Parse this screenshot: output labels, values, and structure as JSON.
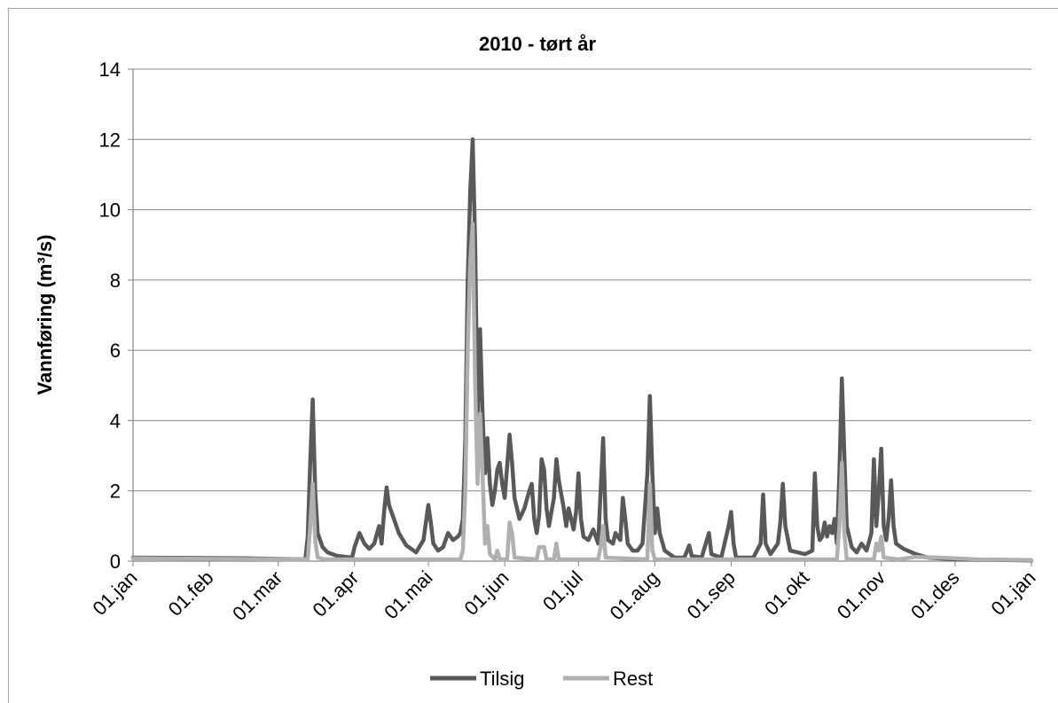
{
  "chart_data": {
    "type": "line",
    "title": "2010 - tørt år",
    "xlabel": "",
    "ylabel": "Vannføring (m³/s)",
    "ylim": [
      0,
      14
    ],
    "yticks": [
      0,
      2,
      4,
      6,
      8,
      10,
      12,
      14
    ],
    "xlim": [
      "2010-01-01",
      "2011-01-01"
    ],
    "xtick_labels": [
      "01.jan",
      "01.feb",
      "01.mar",
      "01.apr",
      "01.mai",
      "01.jun",
      "01.jul",
      "01.aug",
      "01.sep",
      "01.okt",
      "01.nov",
      "01.des",
      "01.jan"
    ],
    "grid": "horizontal",
    "legend_position": "bottom",
    "series": [
      {
        "name": "Tilsig",
        "color": "#595959",
        "points": [
          [
            "2010-01-01",
            0.1
          ],
          [
            "2010-02-15",
            0.08
          ],
          [
            "2010-03-12",
            0.05
          ],
          [
            "2010-03-13",
            0.7
          ],
          [
            "2010-03-14",
            2.8
          ],
          [
            "2010-03-15",
            4.6
          ],
          [
            "2010-03-16",
            2.0
          ],
          [
            "2010-03-17",
            0.8
          ],
          [
            "2010-03-19",
            0.4
          ],
          [
            "2010-03-21",
            0.25
          ],
          [
            "2010-03-25",
            0.15
          ],
          [
            "2010-03-31",
            0.1
          ],
          [
            "2010-04-01",
            0.4
          ],
          [
            "2010-04-03",
            0.8
          ],
          [
            "2010-04-05",
            0.5
          ],
          [
            "2010-04-07",
            0.35
          ],
          [
            "2010-04-09",
            0.5
          ],
          [
            "2010-04-11",
            1.0
          ],
          [
            "2010-04-12",
            0.5
          ],
          [
            "2010-04-13",
            1.4
          ],
          [
            "2010-04-14",
            2.1
          ],
          [
            "2010-04-15",
            1.6
          ],
          [
            "2010-04-17",
            1.2
          ],
          [
            "2010-04-19",
            0.8
          ],
          [
            "2010-04-22",
            0.45
          ],
          [
            "2010-04-26",
            0.25
          ],
          [
            "2010-04-29",
            0.6
          ],
          [
            "2010-05-01",
            1.6
          ],
          [
            "2010-05-02",
            1.1
          ],
          [
            "2010-05-03",
            0.5
          ],
          [
            "2010-05-05",
            0.3
          ],
          [
            "2010-05-07",
            0.4
          ],
          [
            "2010-05-09",
            0.8
          ],
          [
            "2010-05-11",
            0.6
          ],
          [
            "2010-05-13",
            0.7
          ],
          [
            "2010-05-14",
            0.8
          ],
          [
            "2010-05-15",
            1.2
          ],
          [
            "2010-05-16",
            3.5
          ],
          [
            "2010-05-17",
            8.0
          ],
          [
            "2010-05-18",
            10.5
          ],
          [
            "2010-05-19",
            12.0
          ],
          [
            "2010-05-20",
            9.0
          ],
          [
            "2010-05-21",
            4.0
          ],
          [
            "2010-05-22",
            6.6
          ],
          [
            "2010-05-23",
            4.2
          ],
          [
            "2010-05-24",
            2.5
          ],
          [
            "2010-05-25",
            3.5
          ],
          [
            "2010-05-26",
            2.2
          ],
          [
            "2010-05-27",
            1.6
          ],
          [
            "2010-05-28",
            2.0
          ],
          [
            "2010-05-29",
            2.6
          ],
          [
            "2010-05-30",
            2.8
          ],
          [
            "2010-05-31",
            2.2
          ],
          [
            "2010-06-01",
            1.8
          ],
          [
            "2010-06-03",
            3.6
          ],
          [
            "2010-06-04",
            2.8
          ],
          [
            "2010-06-05",
            1.8
          ],
          [
            "2010-06-07",
            1.2
          ],
          [
            "2010-06-09",
            1.5
          ],
          [
            "2010-06-11",
            2.0
          ],
          [
            "2010-06-12",
            2.2
          ],
          [
            "2010-06-13",
            1.2
          ],
          [
            "2010-06-14",
            0.8
          ],
          [
            "2010-06-15",
            1.3
          ],
          [
            "2010-06-16",
            2.9
          ],
          [
            "2010-06-17",
            2.6
          ],
          [
            "2010-06-18",
            1.5
          ],
          [
            "2010-06-19",
            1.0
          ],
          [
            "2010-06-20",
            1.4
          ],
          [
            "2010-06-21",
            1.8
          ],
          [
            "2010-06-22",
            2.9
          ],
          [
            "2010-06-23",
            2.3
          ],
          [
            "2010-06-25",
            1.5
          ],
          [
            "2010-06-26",
            1.0
          ],
          [
            "2010-06-27",
            1.5
          ],
          [
            "2010-06-28",
            1.2
          ],
          [
            "2010-06-29",
            0.9
          ],
          [
            "2010-06-30",
            1.4
          ],
          [
            "2010-07-01",
            2.5
          ],
          [
            "2010-07-02",
            1.2
          ],
          [
            "2010-07-03",
            0.7
          ],
          [
            "2010-07-05",
            0.6
          ],
          [
            "2010-07-07",
            0.9
          ],
          [
            "2010-07-09",
            0.5
          ],
          [
            "2010-07-10",
            2.0
          ],
          [
            "2010-07-11",
            3.5
          ],
          [
            "2010-07-12",
            1.2
          ],
          [
            "2010-07-13",
            0.6
          ],
          [
            "2010-07-15",
            0.5
          ],
          [
            "2010-07-16",
            0.8
          ],
          [
            "2010-07-18",
            0.6
          ],
          [
            "2010-07-19",
            1.8
          ],
          [
            "2010-07-20",
            1.2
          ],
          [
            "2010-07-21",
            0.5
          ],
          [
            "2010-07-23",
            0.3
          ],
          [
            "2010-07-25",
            0.3
          ],
          [
            "2010-07-27",
            0.5
          ],
          [
            "2010-07-29",
            2.5
          ],
          [
            "2010-07-30",
            4.7
          ],
          [
            "2010-07-31",
            2.5
          ],
          [
            "2010-08-01",
            0.8
          ],
          [
            "2010-08-02",
            1.5
          ],
          [
            "2010-08-03",
            0.8
          ],
          [
            "2010-08-05",
            0.3
          ],
          [
            "2010-08-09",
            0.1
          ],
          [
            "2010-08-13",
            0.1
          ],
          [
            "2010-08-15",
            0.45
          ],
          [
            "2010-08-16",
            0.15
          ],
          [
            "2010-08-20",
            0.1
          ],
          [
            "2010-08-23",
            0.8
          ],
          [
            "2010-08-24",
            0.2
          ],
          [
            "2010-08-28",
            0.1
          ],
          [
            "2010-08-31",
            1.0
          ],
          [
            "2010-09-01",
            1.4
          ],
          [
            "2010-09-02",
            0.5
          ],
          [
            "2010-09-03",
            0.1
          ],
          [
            "2010-09-10",
            0.1
          ],
          [
            "2010-09-13",
            0.5
          ],
          [
            "2010-09-14",
            1.9
          ],
          [
            "2010-09-15",
            0.5
          ],
          [
            "2010-09-17",
            0.2
          ],
          [
            "2010-09-20",
            0.5
          ],
          [
            "2010-09-21",
            1.1
          ],
          [
            "2010-09-22",
            2.2
          ],
          [
            "2010-09-23",
            1.0
          ],
          [
            "2010-09-25",
            0.3
          ],
          [
            "2010-10-01",
            0.2
          ],
          [
            "2010-10-04",
            0.3
          ],
          [
            "2010-10-05",
            2.5
          ],
          [
            "2010-10-06",
            1.0
          ],
          [
            "2010-10-07",
            0.6
          ],
          [
            "2010-10-08",
            0.7
          ],
          [
            "2010-10-09",
            1.1
          ],
          [
            "2010-10-10",
            0.7
          ],
          [
            "2010-10-11",
            1.0
          ],
          [
            "2010-10-12",
            0.8
          ],
          [
            "2010-10-13",
            1.2
          ],
          [
            "2010-10-14",
            0.5
          ],
          [
            "2010-10-15",
            2.5
          ],
          [
            "2010-10-16",
            5.2
          ],
          [
            "2010-10-17",
            3.0
          ],
          [
            "2010-10-18",
            1.0
          ],
          [
            "2010-10-20",
            0.4
          ],
          [
            "2010-10-22",
            0.25
          ],
          [
            "2010-10-24",
            0.5
          ],
          [
            "2010-10-26",
            0.3
          ],
          [
            "2010-10-28",
            0.8
          ],
          [
            "2010-10-29",
            2.9
          ],
          [
            "2010-10-30",
            1.0
          ],
          [
            "2010-10-31",
            2.0
          ],
          [
            "2010-11-01",
            3.2
          ],
          [
            "2010-11-02",
            1.0
          ],
          [
            "2010-11-03",
            0.6
          ],
          [
            "2010-11-04",
            1.2
          ],
          [
            "2010-11-05",
            2.3
          ],
          [
            "2010-11-06",
            1.0
          ],
          [
            "2010-11-07",
            0.5
          ],
          [
            "2010-11-10",
            0.35
          ],
          [
            "2010-11-15",
            0.2
          ],
          [
            "2010-11-20",
            0.1
          ],
          [
            "2010-12-01",
            0.05
          ],
          [
            "2011-01-01",
            0.02
          ]
        ]
      },
      {
        "name": "Rest",
        "color": "#b0b0b0",
        "points": [
          [
            "2010-01-01",
            0.08
          ],
          [
            "2010-02-15",
            0.06
          ],
          [
            "2010-03-13",
            0.05
          ],
          [
            "2010-03-14",
            1.0
          ],
          [
            "2010-03-15",
            2.2
          ],
          [
            "2010-03-16",
            0.6
          ],
          [
            "2010-03-17",
            0.1
          ],
          [
            "2010-03-20",
            0.05
          ],
          [
            "2010-04-01",
            0.05
          ],
          [
            "2010-05-14",
            0.05
          ],
          [
            "2010-05-15",
            0.3
          ],
          [
            "2010-05-16",
            2.0
          ],
          [
            "2010-05-17",
            6.0
          ],
          [
            "2010-05-18",
            8.5
          ],
          [
            "2010-05-19",
            9.6
          ],
          [
            "2010-05-20",
            5.0
          ],
          [
            "2010-05-21",
            2.2
          ],
          [
            "2010-05-22",
            4.2
          ],
          [
            "2010-05-23",
            2.5
          ],
          [
            "2010-05-24",
            0.5
          ],
          [
            "2010-05-25",
            1.0
          ],
          [
            "2010-05-26",
            0.2
          ],
          [
            "2010-05-28",
            0.05
          ],
          [
            "2010-05-29",
            0.3
          ],
          [
            "2010-05-30",
            0.05
          ],
          [
            "2010-06-02",
            0.05
          ],
          [
            "2010-06-03",
            1.1
          ],
          [
            "2010-06-04",
            0.8
          ],
          [
            "2010-06-05",
            0.1
          ],
          [
            "2010-06-14",
            0.05
          ],
          [
            "2010-06-15",
            0.4
          ],
          [
            "2010-06-17",
            0.4
          ],
          [
            "2010-06-18",
            0.05
          ],
          [
            "2010-06-21",
            0.05
          ],
          [
            "2010-06-22",
            0.5
          ],
          [
            "2010-06-23",
            0.05
          ],
          [
            "2010-07-09",
            0.05
          ],
          [
            "2010-07-10",
            0.4
          ],
          [
            "2010-07-11",
            1.0
          ],
          [
            "2010-07-12",
            0.1
          ],
          [
            "2010-07-29",
            0.05
          ],
          [
            "2010-07-30",
            2.2
          ],
          [
            "2010-07-31",
            0.3
          ],
          [
            "2010-08-01",
            0.05
          ],
          [
            "2010-10-14",
            0.05
          ],
          [
            "2010-10-15",
            1.0
          ],
          [
            "2010-10-16",
            2.8
          ],
          [
            "2010-10-17",
            0.8
          ],
          [
            "2010-10-18",
            0.05
          ],
          [
            "2010-10-29",
            0.05
          ],
          [
            "2010-10-30",
            0.5
          ],
          [
            "2010-10-31",
            0.3
          ],
          [
            "2010-11-01",
            0.7
          ],
          [
            "2010-11-02",
            0.1
          ],
          [
            "2010-11-08",
            0.05
          ],
          [
            "2010-11-15",
            0.12
          ],
          [
            "2010-11-25",
            0.1
          ],
          [
            "2010-12-10",
            0.05
          ],
          [
            "2011-01-01",
            0.03
          ]
        ]
      }
    ]
  }
}
